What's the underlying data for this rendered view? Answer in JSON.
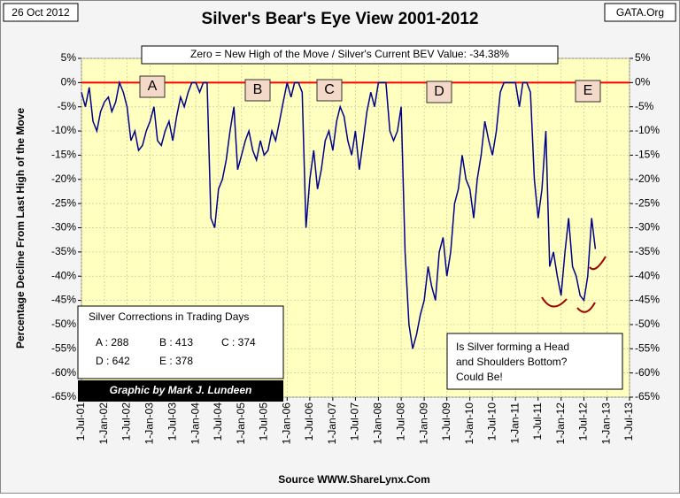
{
  "chart_data": {
    "type": "line",
    "title": "Silver's Bear's Eye View 2001-2012",
    "date": "26 Oct 2012",
    "site": "GATA.Org",
    "subtitle": "Zero = New High of the Move / Silver's Current BEV Value: -34.38%",
    "ylabel": "Percentage Decline From Last High of the Move",
    "source": "Source WWW.ShareLynx.Com",
    "credit": "Graphic by Mark J. Lundeen",
    "annotations": [
      "A",
      "B",
      "C",
      "D",
      "E"
    ],
    "corrections": {
      "title": "Silver Corrections in Trading Days",
      "items": [
        "A : 288",
        "B : 413",
        "C : 374",
        "D : 642",
        "E : 378"
      ]
    },
    "question": [
      "Is Silver forming a Head",
      "and Shoulders Bottom?",
      "Could Be!"
    ],
    "grid": true,
    "zero_line_color": "#ff0000",
    "xlim": [
      "2001-07-01",
      "2013-07-01"
    ],
    "xticks": [
      {
        "value": "2001-07-01",
        "label": "1-Jul-01"
      },
      {
        "value": "2002-01-01",
        "label": "1-Jan-02"
      },
      {
        "value": "2002-07-01",
        "label": "1-Jul-02"
      },
      {
        "value": "2003-01-01",
        "label": "1-Jan-03"
      },
      {
        "value": "2003-07-01",
        "label": "1-Jul-03"
      },
      {
        "value": "2004-01-01",
        "label": "1-Jan-04"
      },
      {
        "value": "2004-07-01",
        "label": "1-Jul-04"
      },
      {
        "value": "2005-01-01",
        "label": "1-Jan-05"
      },
      {
        "value": "2005-07-01",
        "label": "1-Jul-05"
      },
      {
        "value": "2006-01-01",
        "label": "1-Jan-06"
      },
      {
        "value": "2006-07-01",
        "label": "1-Jul-06"
      },
      {
        "value": "2007-01-01",
        "label": "1-Jan-07"
      },
      {
        "value": "2007-07-01",
        "label": "1-Jul-07"
      },
      {
        "value": "2008-01-01",
        "label": "1-Jan-08"
      },
      {
        "value": "2008-07-01",
        "label": "1-Jul-08"
      },
      {
        "value": "2009-01-01",
        "label": "1-Jan-09"
      },
      {
        "value": "2009-07-01",
        "label": "1-Jul-09"
      },
      {
        "value": "2010-01-01",
        "label": "1-Jan-10"
      },
      {
        "value": "2010-07-01",
        "label": "1-Jul-10"
      },
      {
        "value": "2011-01-01",
        "label": "1-Jan-11"
      },
      {
        "value": "2011-07-01",
        "label": "1-Jul-11"
      },
      {
        "value": "2012-01-01",
        "label": "1-Jan-12"
      },
      {
        "value": "2012-07-01",
        "label": "1-Jul-12"
      },
      {
        "value": "2013-01-01",
        "label": "1-Jan-13"
      },
      {
        "value": "2013-07-01",
        "label": "1-Jul-13"
      }
    ],
    "ylim": [
      -65,
      5
    ],
    "yticks": [
      {
        "value": 5,
        "label": "5%"
      },
      {
        "value": 0,
        "label": "0%"
      },
      {
        "value": -5,
        "label": "-5%"
      },
      {
        "value": -10,
        "label": "-10%"
      },
      {
        "value": -15,
        "label": "-15%"
      },
      {
        "value": -20,
        "label": "-20%"
      },
      {
        "value": -25,
        "label": "-25%"
      },
      {
        "value": -30,
        "label": "-30%"
      },
      {
        "value": -35,
        "label": "-35%"
      },
      {
        "value": -40,
        "label": "-40%"
      },
      {
        "value": -45,
        "label": "-45%"
      },
      {
        "value": -50,
        "label": "-50%"
      },
      {
        "value": -55,
        "label": "-55%"
      },
      {
        "value": -60,
        "label": "-60%"
      },
      {
        "value": -65,
        "label": "-65%"
      }
    ],
    "y2lim": [
      -65,
      5
    ],
    "y2ticks": [
      {
        "value": 5,
        "label": "5%"
      },
      {
        "value": 0,
        "label": "0%"
      },
      {
        "value": -5,
        "label": "-5%"
      },
      {
        "value": -10,
        "label": "-10%"
      },
      {
        "value": -15,
        "label": "-15%"
      },
      {
        "value": -20,
        "label": "-20%"
      },
      {
        "value": -25,
        "label": "-25%"
      },
      {
        "value": -30,
        "label": "-30%"
      },
      {
        "value": -35,
        "label": "-35%"
      },
      {
        "value": -40,
        "label": "-40%"
      },
      {
        "value": -45,
        "label": "-45%"
      },
      {
        "value": -50,
        "label": "-50%"
      },
      {
        "value": -55,
        "label": "-55%"
      },
      {
        "value": -60,
        "label": "-60%"
      },
      {
        "value": -65,
        "label": "-65%"
      }
    ],
    "series": [
      {
        "name": "Silver BEV",
        "color": "#00008b",
        "x": [
          "2001-07-01",
          "2001-08-01",
          "2001-09-01",
          "2001-10-01",
          "2001-11-01",
          "2001-12-01",
          "2002-01-01",
          "2002-02-01",
          "2002-03-01",
          "2002-04-01",
          "2002-05-01",
          "2002-06-01",
          "2002-07-01",
          "2002-08-01",
          "2002-09-01",
          "2002-10-01",
          "2002-11-01",
          "2002-12-01",
          "2003-01-01",
          "2003-02-01",
          "2003-03-01",
          "2003-04-01",
          "2003-05-01",
          "2003-06-01",
          "2003-07-01",
          "2003-08-01",
          "2003-09-01",
          "2003-10-01",
          "2003-11-01",
          "2003-12-01",
          "2004-01-01",
          "2004-02-01",
          "2004-03-01",
          "2004-04-01",
          "2004-05-01",
          "2004-06-01",
          "2004-07-01",
          "2004-08-01",
          "2004-09-01",
          "2004-10-01",
          "2004-11-01",
          "2004-12-01",
          "2005-01-01",
          "2005-02-01",
          "2005-03-01",
          "2005-04-01",
          "2005-05-01",
          "2005-06-01",
          "2005-07-01",
          "2005-08-01",
          "2005-09-01",
          "2005-10-01",
          "2005-11-01",
          "2005-12-01",
          "2006-01-01",
          "2006-02-01",
          "2006-03-01",
          "2006-04-01",
          "2006-05-01",
          "2006-06-01",
          "2006-07-01",
          "2006-08-01",
          "2006-09-01",
          "2006-10-01",
          "2006-11-01",
          "2006-12-01",
          "2007-01-01",
          "2007-02-01",
          "2007-03-01",
          "2007-04-01",
          "2007-05-01",
          "2007-06-01",
          "2007-07-01",
          "2007-08-01",
          "2007-09-01",
          "2007-10-01",
          "2007-11-01",
          "2007-12-01",
          "2008-01-01",
          "2008-02-01",
          "2008-03-01",
          "2008-04-01",
          "2008-05-01",
          "2008-06-01",
          "2008-07-01",
          "2008-08-01",
          "2008-09-01",
          "2008-10-01",
          "2008-11-01",
          "2008-12-01",
          "2009-01-01",
          "2009-02-01",
          "2009-03-01",
          "2009-04-01",
          "2009-05-01",
          "2009-06-01",
          "2009-07-01",
          "2009-08-01",
          "2009-09-01",
          "2009-10-01",
          "2009-11-01",
          "2009-12-01",
          "2010-01-01",
          "2010-02-01",
          "2010-03-01",
          "2010-04-01",
          "2010-05-01",
          "2010-06-01",
          "2010-07-01",
          "2010-08-01",
          "2010-09-01",
          "2010-10-01",
          "2010-11-01",
          "2010-12-01",
          "2011-01-01",
          "2011-02-01",
          "2011-03-01",
          "2011-04-01",
          "2011-05-01",
          "2011-06-01",
          "2011-07-01",
          "2011-08-01",
          "2011-09-01",
          "2011-10-01",
          "2011-11-01",
          "2011-12-01",
          "2012-01-01",
          "2012-02-01",
          "2012-03-01",
          "2012-04-01",
          "2012-05-01",
          "2012-06-01",
          "2012-07-01",
          "2012-08-01",
          "2012-09-01",
          "2012-10-01"
        ],
        "values": [
          -2,
          -5,
          -1,
          -8,
          -10,
          -6,
          -4,
          -3,
          -6,
          -4,
          0,
          -2,
          -5,
          -12,
          -10,
          -14,
          -13,
          -10,
          -8,
          -5,
          -12,
          -13,
          -10,
          -8,
          -12,
          -7,
          -3,
          -5,
          -2,
          0,
          0,
          -2,
          0,
          0,
          -28,
          -30,
          -22,
          -20,
          -16,
          -10,
          -5,
          -18,
          -15,
          -12,
          -10,
          -14,
          -16,
          -12,
          -15,
          -14,
          -10,
          -12,
          -8,
          -4,
          0,
          -3,
          0,
          0,
          -2,
          -30,
          -20,
          -14,
          -22,
          -18,
          -12,
          -10,
          -14,
          -8,
          -5,
          -7,
          -12,
          -15,
          -10,
          -18,
          -12,
          -6,
          -2,
          -5,
          0,
          0,
          0,
          -10,
          -12,
          -10,
          -5,
          -35,
          -50,
          -55,
          -52,
          -48,
          -45,
          -38,
          -42,
          -45,
          -35,
          -32,
          -40,
          -35,
          -25,
          -22,
          -15,
          -20,
          -22,
          -28,
          -20,
          -15,
          -8,
          -12,
          -15,
          -10,
          -2,
          0,
          0,
          0,
          0,
          -5,
          0,
          0,
          -2,
          -20,
          -28,
          -22,
          -10,
          -38,
          -35,
          -40,
          -44,
          -35,
          -28,
          -38,
          -40,
          -44,
          -45,
          -40,
          -28,
          -34.38
        ]
      }
    ]
  }
}
